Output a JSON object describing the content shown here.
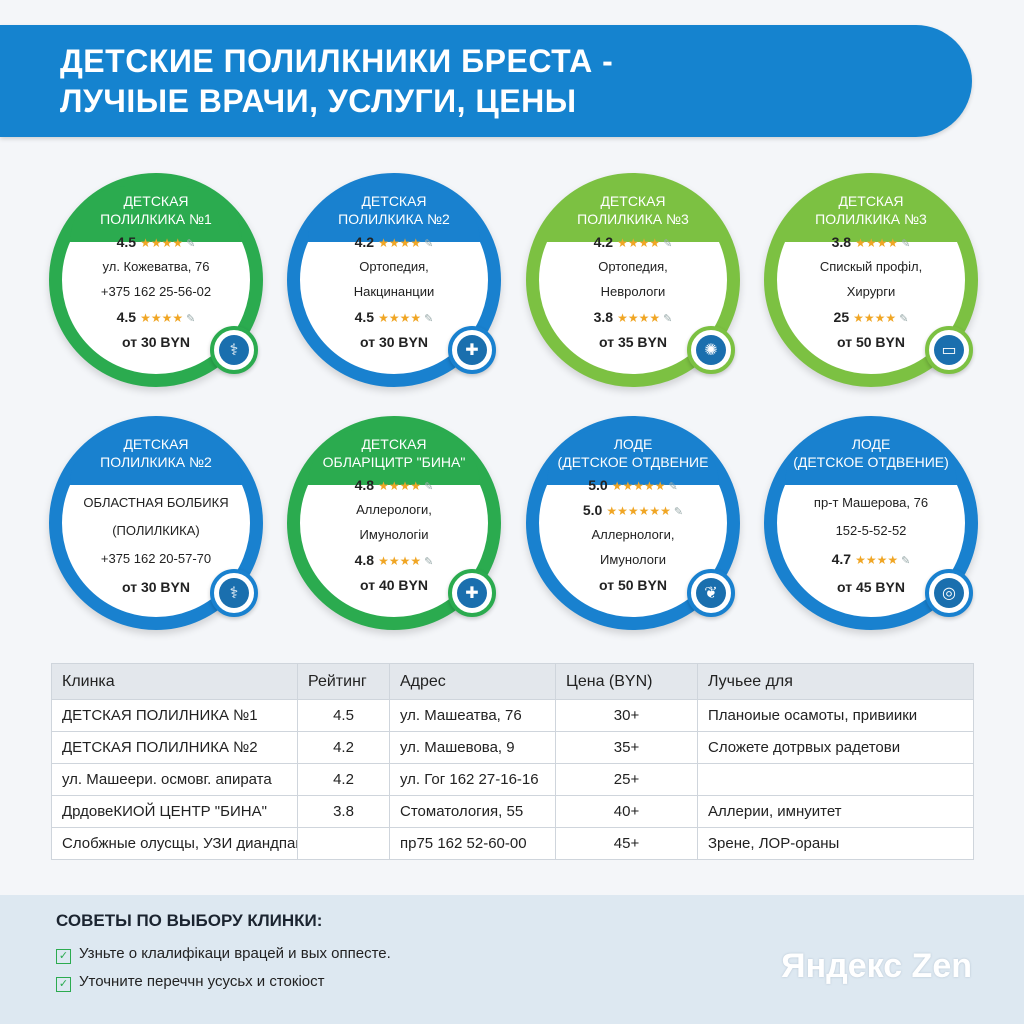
{
  "header": {
    "line1": "ДЕТСКИЕ ПОЛИЛКНИКИ БРЕСТА -",
    "line2": "ЛУЧІЫЕ ВРАЧИ, УСЛУГИ, ЦЕНЫ"
  },
  "cards": [
    {
      "title1": "ДЕТСКАЯ",
      "title2": "ПОЛИЛКИКА №1",
      "rows": [
        {
          "text": "4.5",
          "stars": "★★★★",
          "bold": true
        },
        {
          "text": "ул. Кожеватва, 76",
          "bold": false
        },
        {
          "text": "+375 162 25-56-02",
          "bold": false
        },
        {
          "text": "4.5",
          "stars": "★★★★",
          "bold": true
        },
        {
          "text": "от 30 BYN",
          "bold": true
        }
      ],
      "icon": "stethoscope-icon",
      "glyph": "⚕",
      "color": "green"
    },
    {
      "title1": "ДЕТСКАЯ",
      "title2": "ПОЛИЛКИКА №2",
      "rows": [
        {
          "text": "4.2",
          "stars": "★★★★",
          "bold": true
        },
        {
          "text": "Ортопедия,",
          "bold": false
        },
        {
          "text": "Накцинанции",
          "bold": false
        },
        {
          "text": "4.5",
          "stars": "★★★★",
          "bold": true
        },
        {
          "text": "от 30 BYN",
          "bold": true
        }
      ],
      "icon": "bone-icon",
      "glyph": "✚",
      "color": "blue"
    },
    {
      "title1": "ДЕТСКАЯ",
      "title2": "ПОЛИЛКИКА №3",
      "rows": [
        {
          "text": "4.2",
          "stars": "★★★★",
          "bold": true
        },
        {
          "text": "Ортопедия,",
          "bold": false
        },
        {
          "text": "Неврологи",
          "bold": false
        },
        {
          "text": "3.8",
          "stars": "★★★★",
          "bold": true
        },
        {
          "text": "от 35 BYN",
          "bold": true
        }
      ],
      "icon": "brain-icon",
      "glyph": "✺",
      "color": "lgreen"
    },
    {
      "title1": "ДЕТСКАЯ",
      "title2": "ПОЛИЛКИКА №3",
      "rows": [
        {
          "text": "3.8",
          "stars": "★★★★",
          "bold": true
        },
        {
          "text": "Спиcкый профіл,",
          "bold": false
        },
        {
          "text": "Хирурги",
          "bold": false
        },
        {
          "text": "25",
          "stars": "★★★★",
          "bold": true
        },
        {
          "text": "от 50 BYN",
          "bold": true
        }
      ],
      "icon": "laptop-icon",
      "glyph": "▭",
      "color": "lgreen"
    },
    {
      "title1": "ДЕТСКАЯ",
      "title2": "ПОЛИЛКИКА №2",
      "rows": [
        {
          "text": "ОБЛАСТНАЯ БОЛБИКЯ",
          "bold": false
        },
        {
          "text": "(ПОЛИЛКИКА)",
          "bold": false
        },
        {
          "text": "+375 162 20-57-70",
          "bold": false
        },
        {
          "text": "от 30 BYN",
          "bold": true
        }
      ],
      "icon": "caduceus-icon",
      "glyph": "⚕",
      "color": "blue"
    },
    {
      "title1": "ДЕТСКАЯ",
      "title2": "ОБЛАРІЦИТР \"БИНА\"",
      "rows": [
        {
          "text": "4.8",
          "stars": "★★★★",
          "bold": true
        },
        {
          "text": "Аллерологи,",
          "bold": false
        },
        {
          "text": "Имунологіи",
          "bold": false
        },
        {
          "text": "4.8",
          "stars": "★★★★",
          "bold": true
        },
        {
          "text": "от 40 BYN",
          "bold": true
        }
      ],
      "icon": "shield-icon",
      "glyph": "✚",
      "color": "green"
    },
    {
      "title1": "ЛОДЕ",
      "title2": "(ДЕТСКОЕ ОТДВЕНИЕ",
      "rows": [
        {
          "text": "5.0",
          "stars": "★★★★★",
          "bold": true
        },
        {
          "text": "5.0",
          "stars": "★★★★★★",
          "bold": true
        },
        {
          "text": "Аллернологи,",
          "bold": false
        },
        {
          "text": "Имунологи",
          "bold": false
        },
        {
          "text": "от 50 BYN",
          "bold": true
        }
      ],
      "icon": "leaf-icon",
      "glyph": "❦",
      "color": "blue"
    },
    {
      "title1": "ЛОДЕ",
      "title2": "(ДЕТСКОЕ ОТДВЕНИЕ)",
      "rows": [
        {
          "text": "пр-т Машерова, 76",
          "bold": false
        },
        {
          "text": "152-5-52-52",
          "bold": false
        },
        {
          "text": "4.7",
          "stars": "★★★★",
          "bold": true
        },
        {
          "text": "от 45 BYN",
          "bold": true
        }
      ],
      "icon": "ear-icon",
      "glyph": "◎",
      "color": "blue"
    }
  ],
  "table": {
    "headers": [
      "Клинка",
      "Рейтинг",
      "Адрес",
      "Цена (BYN)",
      "Лучьее для"
    ],
    "rows": [
      [
        "ДЕТСКАЯ ПОЛИЛНИКА №1",
        "4.5",
        "ул. Машеатва, 76",
        "30+",
        "Планоиые осамоты, привиики"
      ],
      [
        "ДЕТСКАЯ ПОЛИЛНИКА №2",
        "4.2",
        "ул. Машевова, 9",
        "35+",
        "Сложете дотрвых радетови"
      ],
      [
        "ул. Машеери. осмовг. апирата",
        "4.2",
        "ул. Гог 162 27-16-16",
        "25+",
        ""
      ],
      [
        "ДрдовеКИОЙ ЦЕНТР \"БИНА\"",
        "3.8",
        "Стоматология, 55",
        "40+",
        "Аллерии, имнуитет"
      ],
      [
        "Слобжные олусщы, УЗИ диандпагтотска",
        "",
        "пр75 162 52-60-00",
        "45+",
        "Зрене, ЛОР-ораны"
      ]
    ]
  },
  "tips": {
    "title": "СОВЕТЫ ПО ВЫБОРУ КЛИНКИ:",
    "items": [
      "Узньте о клалифікаци врацей и вых оппесте.",
      "Уточните переччн усусьх и стокіост"
    ]
  },
  "brand": "Яндекс Zen"
}
